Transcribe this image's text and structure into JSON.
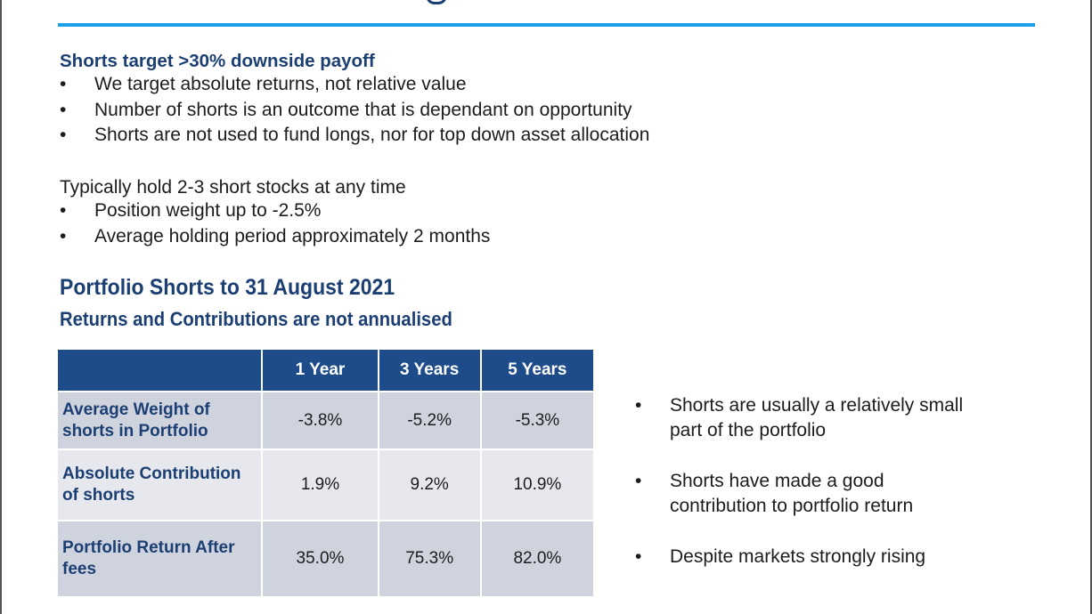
{
  "intro": {
    "heading": "Shorts target >30% downside payoff",
    "bullets": [
      "We target absolute returns, not relative value",
      "Number of shorts is an outcome that is dependant on opportunity",
      "Shorts are not used to fund longs, nor for top down asset allocation"
    ]
  },
  "holdings": {
    "heading": "Typically hold 2-3 short stocks at any time",
    "bullets": [
      "Position weight up to -2.5%",
      "Average holding period approximately 2 months"
    ]
  },
  "section": {
    "title": "Portfolio Shorts to 31 August 2021",
    "subtitle": "Returns and Contributions are not annualised"
  },
  "table": {
    "corner": "",
    "columns": [
      "1 Year",
      "3 Years",
      "5 Years"
    ],
    "rows": [
      {
        "label": "Average Weight of shorts in Portfolio",
        "values": [
          "-3.8%",
          "-5.2%",
          "-5.3%"
        ]
      },
      {
        "label": "Absolute Contribution of shorts",
        "values": [
          "1.9%",
          "9.2%",
          "10.9%"
        ]
      },
      {
        "label": "Portfolio Return After fees",
        "values": [
          "35.0%",
          "75.3%",
          "82.0%"
        ]
      }
    ]
  },
  "side_notes": [
    "Shorts are usually a relatively small part of the portfolio",
    "Shorts have made a good contribution to portfolio return",
    "Despite markets strongly rising"
  ],
  "bullet_glyph": "•",
  "colors": {
    "accent_rule": "#19a0e6",
    "heading_navy": "#1c3f73",
    "table_header": "#1e4b8a",
    "row_dark": "#cfd3de",
    "row_light": "#e6e8ed"
  }
}
